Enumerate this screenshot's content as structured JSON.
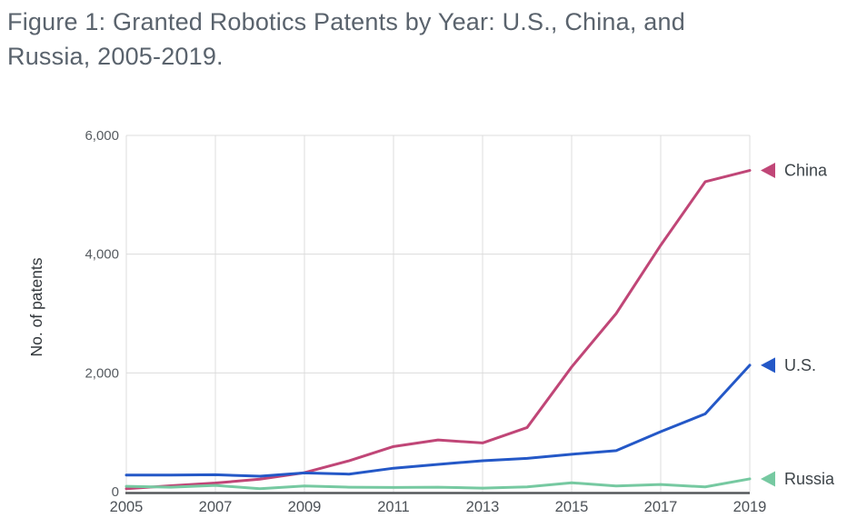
{
  "figure": {
    "title_lines": [
      "Figure 1: Granted Robotics Patents by Year: U.S., China, and",
      "Russia, 2005-2019."
    ]
  },
  "chart_data": {
    "type": "line",
    "title": "Figure 1: Granted Robotics Patents by Year: U.S., China, and Russia, 2005-2019.",
    "xlabel": "",
    "ylabel": "No. of patents",
    "x": [
      2005,
      2006,
      2007,
      2008,
      2009,
      2010,
      2011,
      2012,
      2013,
      2014,
      2015,
      2016,
      2017,
      2018,
      2019
    ],
    "xlim": [
      2005,
      2019
    ],
    "ylim": [
      0,
      6000
    ],
    "x_ticks": [
      2005,
      2007,
      2009,
      2011,
      2013,
      2015,
      2017,
      2019
    ],
    "x_tick_labels": [
      "2005",
      "2007",
      "2009",
      "2011",
      "2013",
      "2015",
      "2017",
      "2019"
    ],
    "y_ticks": [
      0,
      2000,
      4000,
      6000
    ],
    "y_tick_labels": [
      "0",
      "2,000",
      "4,000",
      "6,000"
    ],
    "grid": true,
    "legend_position": "right-of-line-end",
    "legend_marker": "left-triangle",
    "colors": {
      "grid": "#dcdcdc",
      "axis_baseline": "#55585c"
    },
    "series": [
      {
        "name": "China",
        "color": "#c04677",
        "values": [
          50,
          100,
          145,
          210,
          320,
          520,
          760,
          870,
          820,
          1080,
          2100,
          3000,
          4150,
          5220,
          5410
        ]
      },
      {
        "name": "U.S.",
        "color": "#2458c7",
        "values": [
          280,
          280,
          285,
          260,
          315,
          295,
          395,
          460,
          520,
          560,
          630,
          690,
          1010,
          1310,
          2130
        ]
      },
      {
        "name": "Russia",
        "color": "#76c9a1",
        "values": [
          90,
          75,
          105,
          50,
          95,
          75,
          70,
          75,
          60,
          80,
          150,
          95,
          120,
          80,
          215
        ]
      }
    ]
  }
}
